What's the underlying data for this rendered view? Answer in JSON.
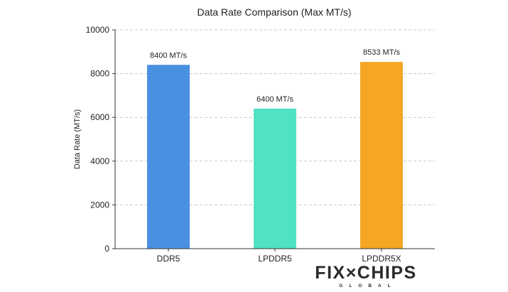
{
  "chart_data": {
    "type": "bar",
    "title": "Data Rate Comparison (Max MT/s)",
    "xlabel": "",
    "ylabel": "Data Rate (MT/s)",
    "ylim": [
      0,
      10000
    ],
    "yticks": [
      0,
      2000,
      4000,
      6000,
      8000,
      10000
    ],
    "grid": true,
    "categories": [
      "DDR5",
      "LPDDR5",
      "LPDDR5X"
    ],
    "values": [
      8400,
      6400,
      8533
    ],
    "data_labels": [
      "8400 MT/s",
      "6400 MT/s",
      "8533 MT/s"
    ],
    "colors": [
      "#4A90E2",
      "#50E3C2",
      "#F5A623"
    ]
  },
  "logo": {
    "text": "FIX CHIPS",
    "subtext": "GLOBAL"
  }
}
